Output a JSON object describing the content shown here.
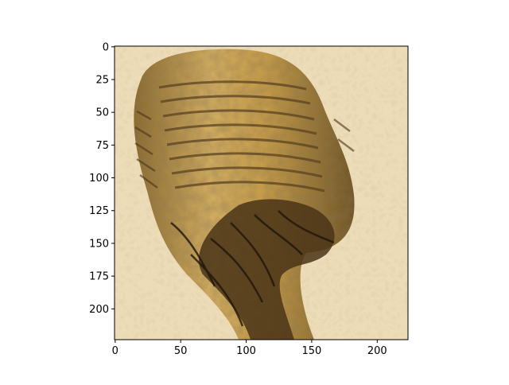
{
  "chart_data": {
    "type": "heatmap",
    "title": "",
    "xlabel": "",
    "ylabel": "",
    "image_shape": [
      224,
      224
    ],
    "xlim": [
      -0.5,
      223.5
    ],
    "ylim": [
      223.5,
      -0.5
    ],
    "xticks": [
      0,
      50,
      100,
      150,
      200
    ],
    "yticks": [
      0,
      25,
      50,
      75,
      100,
      125,
      150,
      175,
      200
    ],
    "grid": false,
    "legend": "none",
    "content": "deep-dream style feature visualization: brown/golden textured cylindrical object resembling a bundled insect or grub on a pale beige textured background",
    "palette": {
      "background": "#ecdcb8",
      "object_light": "#d4b064",
      "object_mid": "#a47c34",
      "object_dark": "#3a2c18"
    }
  }
}
